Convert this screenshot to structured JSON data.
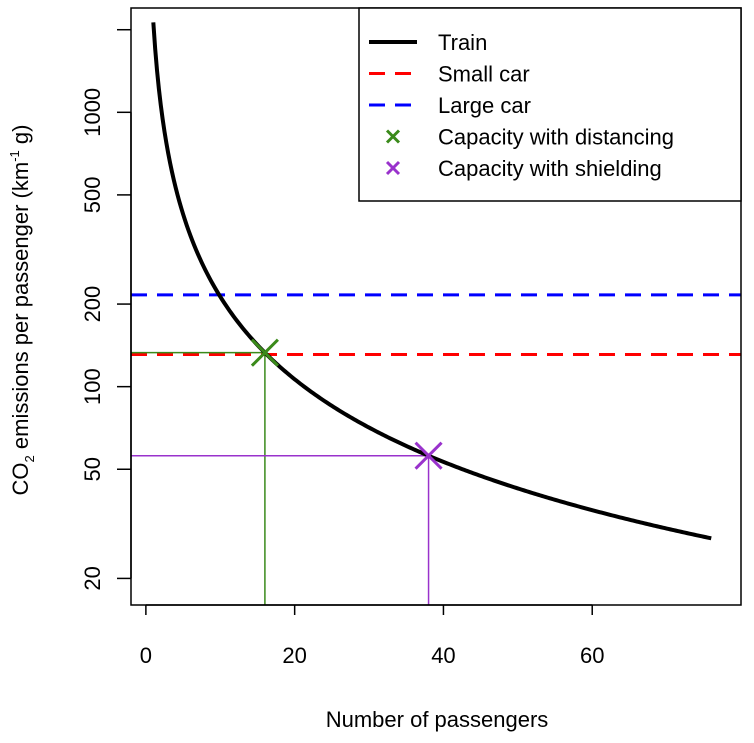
{
  "chart_data": {
    "type": "line",
    "xlabel": "Number of passengers",
    "ylabel": {
      "prefix": "CO",
      "sub": "2",
      "mid": " emissions per passenger (km",
      "sup": "-1",
      "suffix": " g)"
    },
    "xlim": [
      -2,
      80
    ],
    "ylim_log": [
      16,
      2400
    ],
    "y_scale": "log",
    "x_ticks": [
      0,
      20,
      40,
      60
    ],
    "y_ticks": [
      20,
      50,
      100,
      200,
      500,
      1000
    ],
    "grid": false,
    "legend_position": "top-right",
    "series": [
      {
        "name": "Train",
        "kind": "curve",
        "color": "#000000",
        "style": "solid",
        "x_range": [
          1,
          76
        ],
        "constant_total": 2128
      },
      {
        "name": "Small car",
        "kind": "hline",
        "color": "#ff0000",
        "style": "dashed",
        "value": 131
      },
      {
        "name": "Large car",
        "kind": "hline",
        "color": "#0000ff",
        "style": "dashed",
        "value": 216
      },
      {
        "name": "Capacity with distancing",
        "kind": "marker",
        "color": "#3a8a1a",
        "x": 16,
        "y": 133
      },
      {
        "name": "Capacity with shielding",
        "kind": "marker",
        "color": "#9932cc",
        "x": 38,
        "y": 56
      }
    ]
  }
}
